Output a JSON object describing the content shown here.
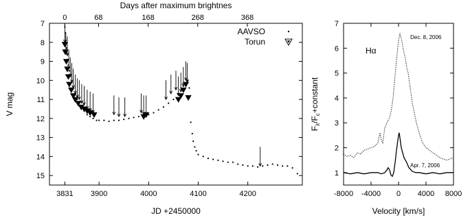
{
  "chart_data": [
    {
      "type": "scatter",
      "xlabel": "JD +2450000",
      "x2label": "Days after maximum brightnes",
      "ylabel": "V mag",
      "xlim": [
        3800,
        4310
      ],
      "ylim": [
        15.5,
        7
      ],
      "y_inverted": true,
      "xticks": [
        "3831",
        "3900",
        "4000",
        "4100",
        "4200"
      ],
      "xtick_values": [
        3831,
        3900,
        4000,
        4100,
        4200
      ],
      "x2ticks": [
        "0",
        "68",
        "168",
        "268",
        "368"
      ],
      "x2tick_values": [
        3831,
        3899,
        3999,
        4099,
        4199
      ],
      "yticks": [
        "7",
        "8",
        "9",
        "10",
        "11",
        "12",
        "13",
        "14",
        "15"
      ],
      "ytick_values": [
        7,
        8,
        9,
        10,
        11,
        12,
        13,
        14,
        15
      ],
      "legend_position": "top-right",
      "series": [
        {
          "name": "AAVSO",
          "marker": "dot",
          "points": [
            [
              3831,
              7.2
            ],
            [
              3832,
              7.5
            ],
            [
              3833,
              7.9
            ],
            [
              3834,
              8.3
            ],
            [
              3835,
              8.6
            ],
            [
              3836,
              8.9
            ],
            [
              3838,
              9.2
            ],
            [
              3840,
              9.5
            ],
            [
              3842,
              9.8
            ],
            [
              3845,
              10.1
            ],
            [
              3848,
              10.4
            ],
            [
              3852,
              10.7
            ],
            [
              3856,
              11.0
            ],
            [
              3860,
              11.2
            ],
            [
              3865,
              11.4
            ],
            [
              3870,
              11.6
            ],
            [
              3876,
              11.8
            ],
            [
              3882,
              11.9
            ],
            [
              3888,
              12.0
            ],
            [
              3895,
              12.1
            ],
            [
              3900,
              12.1
            ],
            [
              3910,
              12.1
            ],
            [
              3920,
              12.15
            ],
            [
              3930,
              12.1
            ],
            [
              3940,
              12.1
            ],
            [
              3950,
              12.05
            ],
            [
              3960,
              12.0
            ],
            [
              3970,
              11.95
            ],
            [
              3980,
              11.9
            ],
            [
              3990,
              11.85
            ],
            [
              4000,
              11.8
            ],
            [
              4010,
              11.7
            ],
            [
              4020,
              11.55
            ],
            [
              4030,
              11.4
            ],
            [
              4040,
              11.2
            ],
            [
              4050,
              11.0
            ],
            [
              4060,
              10.7
            ],
            [
              4070,
              10.3
            ],
            [
              4078,
              10.0
            ],
            [
              4082,
              10.4
            ],
            [
              4085,
              12.2
            ],
            [
              4088,
              12.8
            ],
            [
              4090,
              13.2
            ],
            [
              4093,
              13.5
            ],
            [
              4096,
              13.7
            ],
            [
              4100,
              13.9
            ],
            [
              4110,
              14.0
            ],
            [
              4120,
              14.1
            ],
            [
              4130,
              14.15
            ],
            [
              4140,
              14.2
            ],
            [
              4150,
              14.25
            ],
            [
              4160,
              14.3
            ],
            [
              4170,
              14.3
            ],
            [
              4180,
              14.4
            ],
            [
              4190,
              14.45
            ],
            [
              4200,
              14.5
            ],
            [
              4210,
              14.5
            ],
            [
              4220,
              14.55
            ],
            [
              4230,
              14.5
            ],
            [
              4240,
              14.45
            ],
            [
              4250,
              14.4
            ],
            [
              4260,
              14.45
            ],
            [
              4270,
              14.5
            ],
            [
              4280,
              14.5
            ],
            [
              4290,
              14.6
            ],
            [
              4300,
              14.9
            ]
          ]
        },
        {
          "name": "Torun",
          "marker": "triangle-down",
          "points": [
            [
              3831,
              8.1
            ],
            [
              3832,
              8.5
            ],
            [
              3834,
              9.0
            ],
            [
              3836,
              9.4
            ],
            [
              3838,
              9.8
            ],
            [
              3840,
              10.2
            ],
            [
              3844,
              10.5
            ],
            [
              3848,
              10.8
            ],
            [
              3852,
              11.0
            ],
            [
              3858,
              11.2
            ],
            [
              3864,
              11.4
            ],
            [
              3870,
              11.5
            ],
            [
              3876,
              11.6
            ],
            [
              3882,
              11.7
            ],
            [
              3890,
              11.8
            ],
            [
              3990,
              11.9
            ],
            [
              3995,
              11.8
            ],
            [
              4060,
              11.0
            ],
            [
              4065,
              10.8
            ],
            [
              4070,
              10.5
            ],
            [
              4075,
              10.2
            ],
            [
              4080,
              10.9
            ]
          ]
        }
      ],
      "arrows_down": [
        [
          3831,
          8.0
        ],
        [
          3833,
          8.5
        ],
        [
          3836,
          8.7
        ],
        [
          3839,
          9.4
        ],
        [
          3842,
          9.8
        ],
        [
          3845,
          10.1
        ],
        [
          3848,
          10.4
        ],
        [
          3852,
          10.7
        ],
        [
          3856,
          10.9
        ],
        [
          3860,
          11.0
        ],
        [
          3865,
          11.2
        ],
        [
          3870,
          11.3
        ],
        [
          3876,
          11.5
        ],
        [
          3882,
          11.6
        ],
        [
          3888,
          11.7
        ],
        [
          3930,
          11.8
        ],
        [
          3940,
          11.9
        ],
        [
          3952,
          11.9
        ],
        [
          3985,
          11.7
        ],
        [
          3990,
          11.8
        ],
        [
          3995,
          11.8
        ],
        [
          4035,
          11.0
        ],
        [
          4045,
          10.7
        ],
        [
          4055,
          10.5
        ],
        [
          4060,
          10.8
        ],
        [
          4065,
          10.6
        ],
        [
          4070,
          10.3
        ],
        [
          4075,
          10.0
        ],
        [
          4078,
          10.1
        ],
        [
          4225,
          14.5
        ]
      ]
    },
    {
      "type": "line",
      "xlabel": "Velocity [km/s]",
      "ylabel": "Fλ/Fc+constant",
      "xlim": [
        -8000,
        8000
      ],
      "ylim": [
        0.5,
        7
      ],
      "xticks": [
        "-8000",
        "-4000",
        "0",
        "4000",
        "8000"
      ],
      "xtick_values": [
        -8000,
        -4000,
        0,
        4000,
        8000
      ],
      "yticks": [
        "1",
        "2",
        "3",
        "4",
        "5",
        "6",
        "7"
      ],
      "ytick_values": [
        1,
        2,
        3,
        4,
        5,
        6,
        7
      ],
      "annotation": "Hα",
      "series": [
        {
          "name": "Dec. 8, 2006",
          "style": "dotted",
          "x": [
            -8000,
            -7500,
            -7000,
            -6500,
            -6000,
            -5500,
            -5000,
            -4500,
            -4000,
            -3500,
            -3000,
            -2700,
            -2500,
            -2300,
            -2000,
            -1700,
            -1500,
            -1200,
            -1000,
            -800,
            -600,
            -400,
            -200,
            0,
            200,
            400,
            600,
            800,
            1000,
            1200,
            1400,
            1600,
            1800,
            2000,
            2300,
            2600,
            3000,
            3500,
            4000,
            4500,
            5000,
            5500,
            6000,
            6500,
            7000,
            7500,
            8000
          ],
          "y": [
            1.75,
            1.65,
            1.7,
            1.6,
            1.8,
            1.75,
            1.9,
            1.95,
            2.0,
            2.05,
            2.2,
            2.6,
            2.3,
            2.2,
            2.8,
            3.0,
            3.1,
            3.3,
            3.6,
            4.0,
            4.6,
            5.2,
            5.8,
            6.3,
            6.6,
            6.4,
            6.1,
            5.8,
            5.6,
            5.2,
            5.0,
            4.6,
            4.2,
            3.8,
            3.4,
            3.0,
            2.6,
            2.2,
            2.0,
            1.9,
            1.8,
            1.7,
            1.6,
            1.55,
            1.5,
            1.55,
            1.6
          ]
        },
        {
          "name": "Apr. 7, 2006",
          "style": "solid",
          "x": [
            -8000,
            -7000,
            -6000,
            -5000,
            -4000,
            -3000,
            -2500,
            -2000,
            -1700,
            -1500,
            -1300,
            -1100,
            -900,
            -700,
            -500,
            -300,
            -100,
            0,
            100,
            200,
            400,
            600,
            800,
            1000,
            1200,
            1500,
            2000,
            2500,
            3000,
            4000,
            5000,
            6000,
            7000,
            8000
          ],
          "y": [
            1.0,
            0.95,
            1.0,
            0.95,
            1.0,
            1.0,
            0.95,
            1.0,
            1.1,
            1.2,
            1.1,
            0.9,
            0.85,
            1.0,
            1.4,
            1.9,
            2.3,
            2.5,
            2.6,
            2.4,
            2.0,
            1.8,
            1.6,
            1.5,
            1.4,
            1.2,
            1.05,
            1.0,
            1.0,
            0.95,
            1.0,
            0.95,
            1.0,
            1.0
          ]
        }
      ]
    }
  ]
}
